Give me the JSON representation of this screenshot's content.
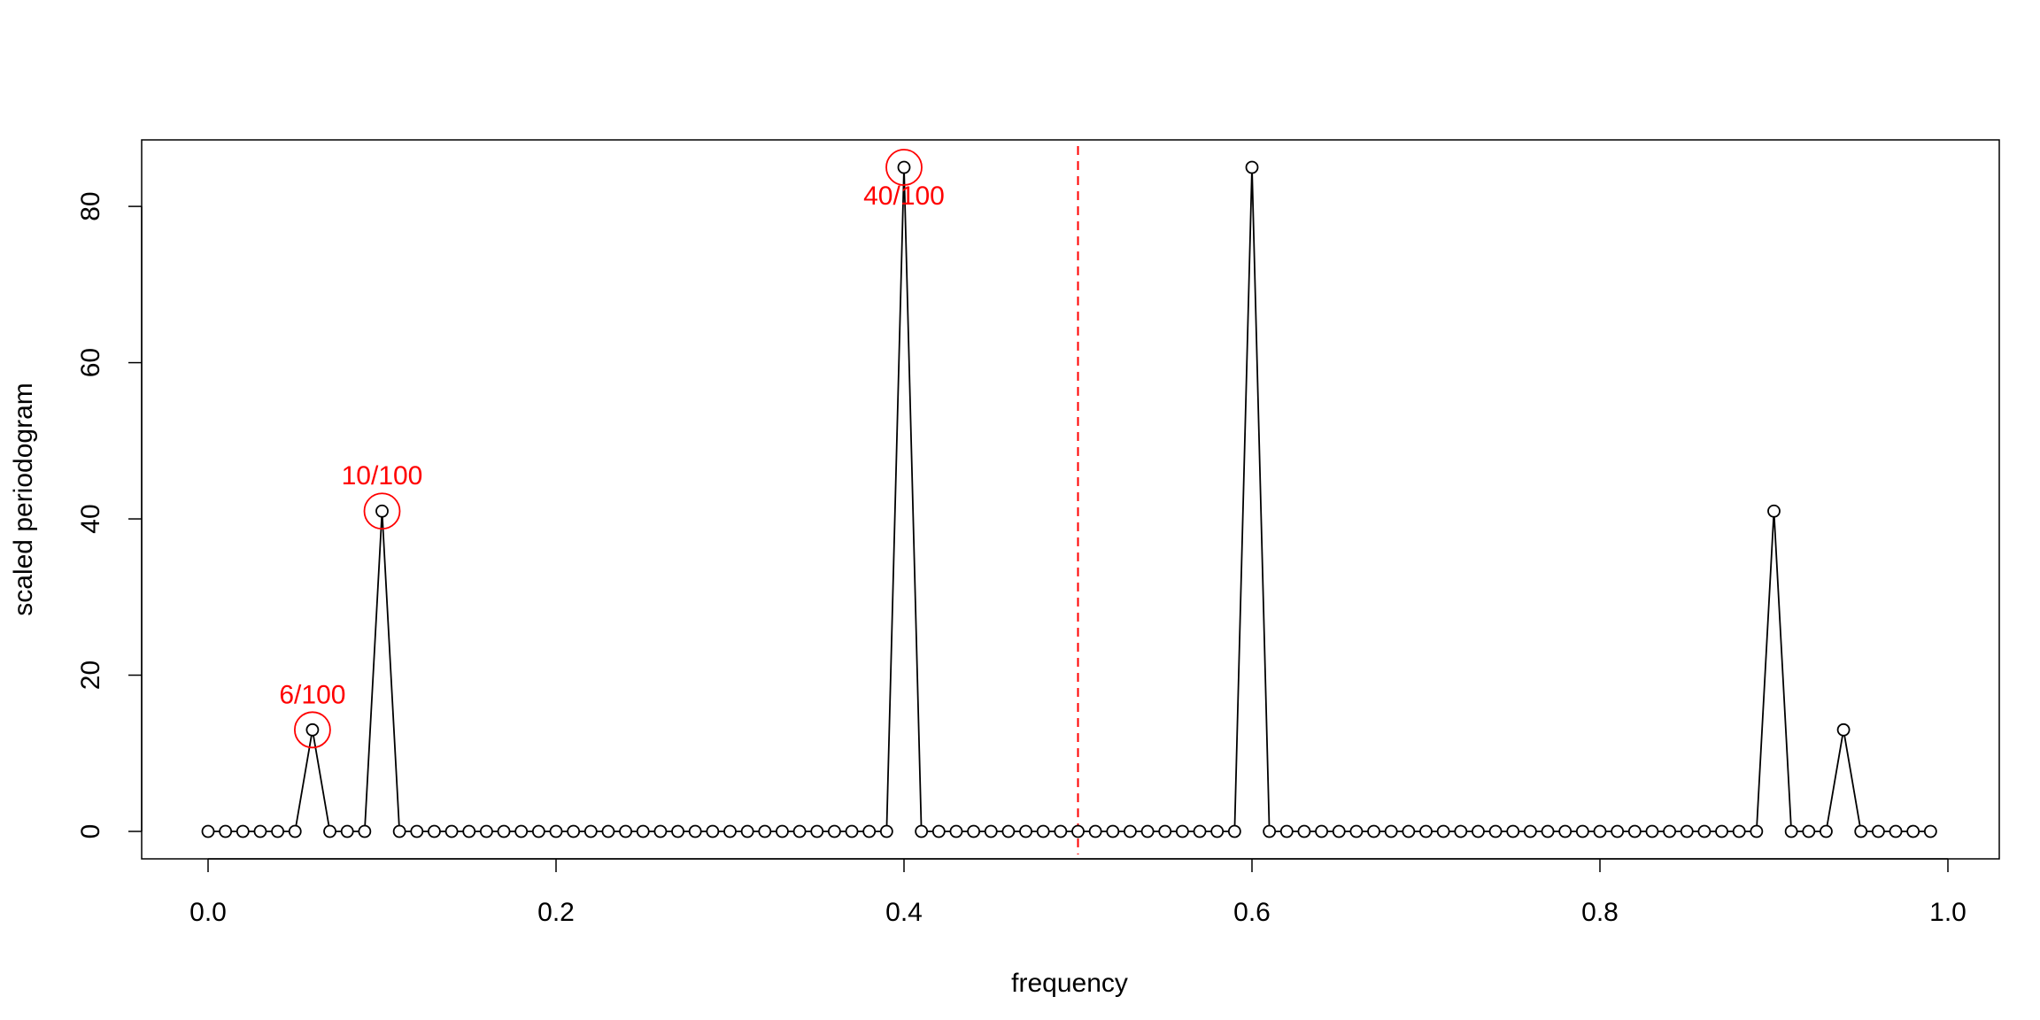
{
  "chart_data": {
    "type": "line",
    "xlabel": "frequency",
    "ylabel": "scaled periodogram",
    "xlim": [
      0,
      1
    ],
    "ylim": [
      0,
      85
    ],
    "x_ticks": [
      0.0,
      0.2,
      0.4,
      0.6,
      0.8,
      1.0
    ],
    "x_tick_labels": [
      "0.0",
      "0.2",
      "0.4",
      "0.6",
      "0.8",
      "1.0"
    ],
    "y_ticks": [
      0,
      20,
      40,
      60,
      80
    ],
    "y_tick_labels": [
      "0",
      "20",
      "40",
      "60",
      "80"
    ],
    "grid": false,
    "markers": "open-circle",
    "series": [
      {
        "x": [
          0.0,
          0.01,
          0.02,
          0.03,
          0.04,
          0.05,
          0.06,
          0.07,
          0.08,
          0.09,
          0.1,
          0.11,
          0.12,
          0.13,
          0.14,
          0.15,
          0.16,
          0.17,
          0.18,
          0.19,
          0.2,
          0.21,
          0.22,
          0.23,
          0.24,
          0.25,
          0.26,
          0.27,
          0.28,
          0.29,
          0.3,
          0.31,
          0.32,
          0.33,
          0.34,
          0.35,
          0.36,
          0.37,
          0.38,
          0.39,
          0.4,
          0.41,
          0.42,
          0.43,
          0.44,
          0.45,
          0.46,
          0.47,
          0.48,
          0.49,
          0.5,
          0.51,
          0.52,
          0.53,
          0.54,
          0.55,
          0.56,
          0.57,
          0.58,
          0.59,
          0.6,
          0.61,
          0.62,
          0.63,
          0.64,
          0.65,
          0.66,
          0.67,
          0.68,
          0.69,
          0.7,
          0.71,
          0.72,
          0.73,
          0.74,
          0.75,
          0.76,
          0.77,
          0.78,
          0.79,
          0.8,
          0.81,
          0.82,
          0.83,
          0.84,
          0.85,
          0.86,
          0.87,
          0.88,
          0.89,
          0.9,
          0.91,
          0.92,
          0.93,
          0.94,
          0.95,
          0.96,
          0.97,
          0.98,
          0.99
        ],
        "values": [
          0,
          0,
          0,
          0,
          0,
          0,
          13,
          0,
          0,
          0,
          41,
          0,
          0,
          0,
          0,
          0,
          0,
          0,
          0,
          0,
          0,
          0,
          0,
          0,
          0,
          0,
          0,
          0,
          0,
          0,
          0,
          0,
          0,
          0,
          0,
          0,
          0,
          0,
          0,
          0,
          85,
          0,
          0,
          0,
          0,
          0,
          0,
          0,
          0,
          0,
          0,
          0,
          0,
          0,
          0,
          0,
          0,
          0,
          0,
          0,
          85,
          0,
          0,
          0,
          0,
          0,
          0,
          0,
          0,
          0,
          0,
          0,
          0,
          0,
          0,
          0,
          0,
          0,
          0,
          0,
          0,
          0,
          0,
          0,
          0,
          0,
          0,
          0,
          0,
          0,
          41,
          0,
          0,
          0,
          13,
          0,
          0,
          0,
          0,
          0
        ],
        "color": "#000000"
      }
    ],
    "annotations": [
      {
        "label": "6/100",
        "x": 0.06,
        "y": 13,
        "position": "above",
        "color": "#ff0000"
      },
      {
        "label": "10/100",
        "x": 0.1,
        "y": 41,
        "position": "above",
        "color": "#ff0000"
      },
      {
        "label": "40/100",
        "x": 0.4,
        "y": 85,
        "position": "below",
        "color": "#ff0000"
      }
    ],
    "reference_lines": [
      {
        "orientation": "vertical",
        "x": 0.5,
        "style": "dashed",
        "color": "#ff0000"
      }
    ]
  }
}
